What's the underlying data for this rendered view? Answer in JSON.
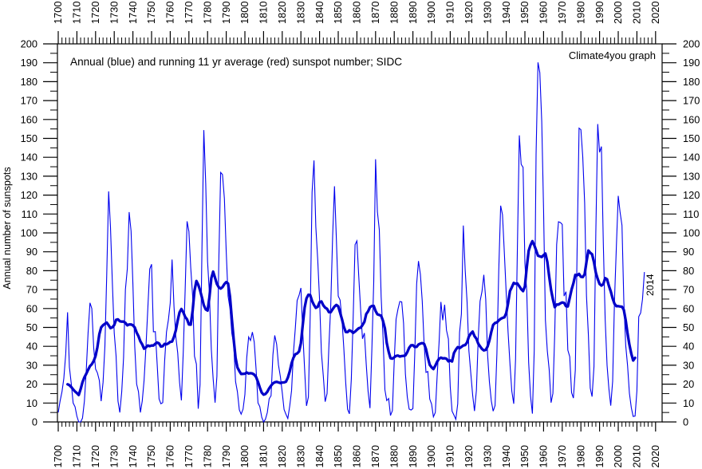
{
  "chart_data": {
    "type": "line",
    "title": "Annual (blue) and running 11 yr average (red) sunspot number; SIDC",
    "watermark": "Climate4you graph",
    "ylabel": "Annual number of sunspots",
    "end_label": "2014",
    "xlim": [
      1700,
      2024
    ],
    "ylim": [
      0,
      200
    ],
    "grid": false,
    "legend_position": "none (series identified in title)",
    "x_tick_labels": [
      1700,
      1710,
      1720,
      1730,
      1740,
      1750,
      1760,
      1770,
      1780,
      1790,
      1800,
      1810,
      1820,
      1830,
      1840,
      1850,
      1860,
      1870,
      1880,
      1890,
      1900,
      1910,
      1920,
      1930,
      1940,
      1950,
      1960,
      1970,
      1980,
      1990,
      2000,
      2010,
      2020
    ],
    "x_tick_minor_step": 2,
    "y_tick_labels": [
      0,
      10,
      20,
      30,
      40,
      50,
      60,
      70,
      80,
      90,
      100,
      110,
      120,
      130,
      140,
      150,
      160,
      170,
      180,
      190,
      200
    ],
    "y_tick_minor_step": 5,
    "colors": {
      "annual_line": "#0000ee",
      "average_line": "#0000c8",
      "annotation": "#0000ff",
      "axis": "#000000",
      "background": "#ffffff"
    },
    "x_start": 1700,
    "x_end": 2014,
    "series": [
      {
        "name": "Annual sunspot number (SIDC)",
        "style": "thin blue line",
        "values": [
          5,
          11,
          16,
          23,
          36,
          58,
          29,
          20,
          10,
          8,
          3,
          0,
          0,
          2,
          11,
          27,
          47,
          63,
          60,
          39,
          28,
          26,
          22,
          11,
          21,
          40,
          78,
          122,
          103,
          73,
          47,
          35,
          11,
          5,
          16,
          34,
          70,
          81,
          111,
          101,
          73,
          40,
          20,
          16,
          5,
          11,
          22,
          40,
          60,
          80.9,
          83.4,
          47.7,
          47.8,
          30.7,
          12.2,
          9.6,
          10.2,
          32.4,
          47.6,
          54,
          62.9,
          85.9,
          61.2,
          45.1,
          36.4,
          20.9,
          11.4,
          37.8,
          69.8,
          106.1,
          100.8,
          81.6,
          66.5,
          34.8,
          30.6,
          7,
          19.8,
          92.5,
          154.4,
          125.9,
          84.8,
          68.1,
          38.5,
          22.8,
          10.2,
          24.1,
          82.9,
          132,
          130.9,
          118.1,
          89.9,
          66.6,
          60,
          46.9,
          41,
          21.3,
          16,
          6.4,
          4.1,
          6.8,
          14.5,
          34,
          45,
          43.1,
          47.5,
          42.2,
          28.1,
          10.1,
          8.1,
          2.5,
          0,
          1.4,
          5,
          12.2,
          13.9,
          35.4,
          45.8,
          41.1,
          30.1,
          23.9,
          15.6,
          6.6,
          4,
          1.8,
          8.5,
          16.6,
          36.3,
          49.6,
          64.2,
          67,
          70.9,
          47.8,
          27.5,
          8.5,
          13.2,
          56.9,
          121.5,
          138.3,
          103.2,
          85.7,
          64.6,
          36.7,
          24.2,
          10.7,
          15,
          40.1,
          61.5,
          98.5,
          124.7,
          96.3,
          66.6,
          64.5,
          54.1,
          39,
          20.6,
          6.7,
          4.3,
          22.7,
          54.8,
          93.8,
          95.8,
          77.2,
          59.1,
          44,
          47,
          30.5,
          16.3,
          7.3,
          37.6,
          74,
          139,
          111.2,
          101.6,
          66.2,
          44.7,
          17,
          11.3,
          12.4,
          3.4,
          6,
          32.3,
          54.3,
          59.7,
          63.7,
          63.5,
          52.2,
          25.4,
          13.1,
          6.8,
          6.3,
          7.1,
          35.6,
          73,
          85.1,
          78,
          64,
          41.8,
          26.2,
          26.7,
          12.1,
          9.5,
          2.7,
          5,
          24.4,
          42,
          63.5,
          53.8,
          62,
          48.5,
          43.9,
          18.6,
          5.7,
          3.6,
          1.4,
          9.6,
          47.4,
          57.1,
          103.9,
          80.6,
          63.6,
          37.6,
          26.1,
          14.2,
          5.8,
          16.7,
          44.3,
          63.9,
          69,
          77.8,
          64.9,
          35.7,
          21.2,
          11.1,
          5.7,
          8.7,
          36.1,
          79.7,
          114.4,
          109.6,
          88.8,
          67.8,
          47.5,
          30.6,
          16.3,
          9.6,
          33.2,
          92.6,
          151.6,
          136.3,
          134.7,
          83.9,
          69.4,
          31.5,
          13.9,
          4.4,
          38,
          141.7,
          190.2,
          184.8,
          159,
          112.3,
          53.9,
          37.6,
          27.9,
          10.2,
          15.1,
          47,
          93.8,
          105.9,
          105.5,
          104.5,
          66.6,
          68.9,
          38,
          34.5,
          15.5,
          12.6,
          27.5,
          92.5,
          155.4,
          154.6,
          140.4,
          115.9,
          66.6,
          45.9,
          17.9,
          13.4,
          29.4,
          100.2,
          157.6,
          142.6,
          145.7,
          94.3,
          54.6,
          29.9,
          17.5,
          8.6,
          21.5,
          64.3,
          93.3,
          119.6,
          111,
          104,
          63.7,
          40.4,
          29.8,
          15.2,
          7.5,
          2.9,
          3.1,
          16.5,
          55.7,
          57.7,
          64.9,
          79.3
        ]
      },
      {
        "name": "Running 11 yr average",
        "style": "thick blue line",
        "window": 11,
        "derived_from": "centered moving average of annual series"
      }
    ]
  }
}
